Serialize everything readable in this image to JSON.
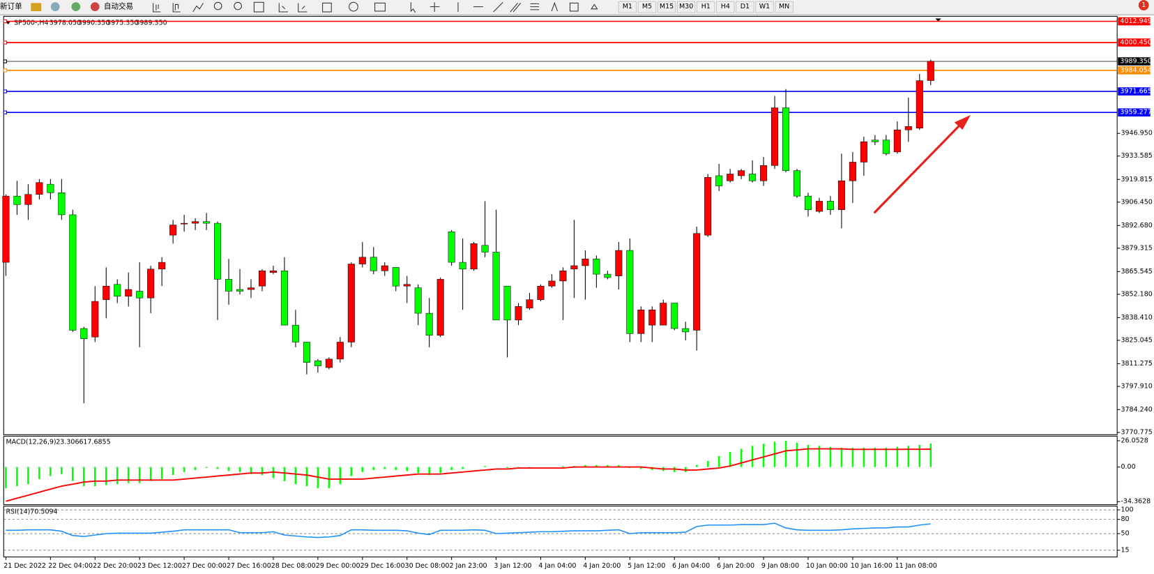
{
  "toolbar": {
    "new_order": "新订单",
    "auto_trading": "自动交易",
    "timeframes": [
      "M1",
      "M5",
      "M15",
      "M30",
      "H1",
      "H4",
      "D1",
      "W1",
      "MN"
    ],
    "notifications": "1"
  },
  "chart_data": [
    {
      "type": "candlestick",
      "symbol": "SP500-,H4",
      "header_values": [
        "3978.050",
        "3990.350",
        "3975.350",
        "3989.350"
      ],
      "categories": [
        "21 Dec 2022",
        null,
        null,
        null,
        "22 Dec 04:00",
        null,
        null,
        null,
        "22 Dec 20:00",
        null,
        null,
        null,
        "23 Dec 12:00",
        null,
        null,
        null,
        "27 Dec 00:00",
        null,
        null,
        null,
        "27 Dec 16:00",
        null,
        null,
        null,
        "28 Dec 08:00",
        null,
        null,
        null,
        "29 Dec 00:00",
        null,
        null,
        null,
        "29 Dec 16:00",
        null,
        null,
        null,
        "30 Dec 08:00",
        null,
        null,
        null,
        "2 Jan 23:00",
        null,
        null,
        null,
        "3 Jan 12:00",
        null,
        null,
        null,
        "4 Jan 04:00",
        null,
        null,
        null,
        "4 Jan 20:00",
        null,
        null,
        null,
        "5 Jan 12:00",
        null,
        null,
        null,
        "6 Jan 04:00",
        null,
        null,
        null,
        "6 Jan 20:00",
        null,
        null,
        null,
        "9 Jan 08:00",
        null,
        null,
        null,
        "10 Jan 00:00",
        null,
        null,
        null,
        "10 Jan 16:00",
        null,
        null,
        null,
        "11 Jan 08:00",
        null,
        null,
        null
      ],
      "open": [
        3871,
        3910,
        3905,
        3911,
        3917,
        3912,
        3899,
        3832,
        3827,
        3849,
        3858,
        3851,
        3854,
        3850,
        3867,
        3887,
        3894,
        3894,
        3895,
        3894,
        3861,
        3855,
        3855,
        3857,
        3865,
        3866,
        3834,
        3824,
        3813,
        3809,
        3814,
        3824,
        3870,
        3874,
        3866,
        3868,
        3857,
        3856,
        3841,
        3828,
        3889,
        3871,
        3867,
        3881,
        3877,
        3857,
        3837,
        3844,
        3849,
        3857,
        3860,
        3867,
        3869,
        3873,
        3864,
        3863,
        3878,
        3829,
        3834,
        3834,
        3847,
        3832,
        3831,
        3887,
        3922,
        3919,
        3922,
        3923,
        3919,
        3928,
        3962,
        3925,
        3910,
        3901,
        3907,
        3902,
        3919,
        3930,
        3943,
        3943,
        3936,
        3949,
        3950,
        3978.05
      ],
      "high": [
        3911,
        3919,
        3917,
        3920,
        3920,
        3920,
        3902,
        3833,
        3857,
        3868,
        3861,
        3865,
        3871,
        3869,
        3874,
        3896,
        3899,
        3897,
        3900,
        3895,
        3873,
        3867,
        3861,
        3867,
        3869,
        3874,
        3843,
        3824,
        3814,
        3815,
        3827,
        3871,
        3883,
        3880,
        3871,
        3868,
        3863,
        3858,
        3850,
        3862,
        3890,
        3885,
        3883,
        3907,
        3902,
        3857,
        3847,
        3853,
        3858,
        3864,
        3868,
        3896,
        3878,
        3875,
        3866,
        3883,
        3885,
        3845,
        3845,
        3849,
        3847,
        3836,
        3892,
        3923,
        3929,
        3926,
        3926,
        3931,
        3933,
        3969,
        3973,
        3926,
        3912,
        3909,
        3910,
        3935,
        3936,
        3945,
        3946,
        3946,
        3954,
        3968,
        3982,
        3990.35
      ],
      "low": [
        3863,
        3899,
        3896,
        3908,
        3908,
        3896,
        3830,
        3788,
        3824,
        3838,
        3847,
        3845,
        3821,
        3841,
        3857,
        3882,
        3889,
        3890,
        3890,
        3837,
        3846,
        3852,
        3850,
        3854,
        3864,
        3834,
        3821,
        3805,
        3806,
        3808,
        3812,
        3821,
        3868,
        3864,
        3863,
        3854,
        3847,
        3834,
        3821,
        3827,
        3869,
        3843,
        3866,
        3874,
        3837,
        3815,
        3834,
        3843,
        3848,
        3856,
        3837,
        3850,
        3849,
        3856,
        3861,
        3855,
        3824,
        3824,
        3824,
        3834,
        3831,
        3825,
        3819,
        3886,
        3913,
        3918,
        3920,
        3918,
        3916,
        3926,
        3924,
        3909,
        3898,
        3900,
        3899,
        3891,
        3906,
        3922,
        3940,
        3934,
        3935,
        3942,
        3949,
        3975.35
      ],
      "close": [
        3910,
        3905,
        3911,
        3918,
        3912,
        3899,
        3831,
        3826,
        3848,
        3857,
        3851,
        3855,
        3850,
        3867,
        3871,
        3893,
        3894,
        3895,
        3894,
        3861,
        3854,
        3854,
        3856,
        3866,
        3866,
        3834,
        3824,
        3812,
        3810,
        3814,
        3824,
        3870,
        3874,
        3866,
        3869,
        3857,
        3858,
        3841,
        3828,
        3861,
        3871,
        3867,
        3882,
        3877,
        3837,
        3837,
        3845,
        3849,
        3857,
        3860,
        3866,
        3869,
        3873,
        3864,
        3862,
        3878,
        3829,
        3843,
        3843,
        3847,
        3832,
        3830,
        3888,
        3921,
        3916,
        3923,
        3925,
        3919,
        3928,
        3962,
        3925,
        3910,
        3902,
        3907,
        3902,
        3919,
        3930,
        3942,
        3942,
        3935,
        3949,
        3951,
        3978,
        3989.35
      ],
      "up_color": "#ff0000",
      "down_color": "#00ff00",
      "ylim": [
        3769.47,
        4015.9
      ],
      "yticks": [
        3770.775,
        {
          "value": 3784.24,
          "label": "3784.240"
        },
        {
          "value": 3797.91,
          "label": "3797.910"
        },
        3811.275,
        3825.045,
        {
          "value": 3838.41,
          "label": "3838.410"
        },
        {
          "value": 3852.18,
          "label": "3852.180"
        },
        3865.545,
        3879.315,
        {
          "value": 3892.68,
          "label": "3892.680"
        },
        {
          "value": 3906.45,
          "label": "3906.450"
        },
        3919.815,
        3933.585,
        {
          "value": 3946.95,
          "label": "3946.950"
        }
      ],
      "levels": [
        {
          "value": 4012.949,
          "color": "#ff0000"
        },
        {
          "value": 4000.45,
          "label": "4000.450",
          "color": "#ff0000"
        },
        {
          "value": 3989.35,
          "label": "3989.350",
          "color": "#000000"
        },
        {
          "value": 3984.054,
          "color": "#ff8c00"
        },
        {
          "value": 3971.665,
          "color": "#0000ff"
        },
        {
          "value": 3959.277,
          "color": "#0000ff"
        }
      ]
    },
    {
      "type": "macd",
      "title": "MACD(12,26,9)",
      "series": [
        {
          "style": "histogram",
          "color": "#00ff00",
          "values": [
            -21,
            -19,
            -17,
            -12,
            -9,
            -7,
            -14,
            -19,
            -19,
            -18,
            -17,
            -16,
            -16,
            -14,
            -12,
            -8,
            -5,
            -3,
            -1,
            -2,
            -4,
            -5,
            -7,
            -8,
            -11,
            -14,
            -17,
            -19,
            -21,
            -21,
            -17,
            -9,
            -5,
            -3,
            -2,
            -3,
            -4,
            -6,
            -8,
            -6,
            -3,
            -2,
            0,
            1,
            0,
            -1,
            -1,
            -1,
            0,
            0,
            1,
            1,
            2,
            2,
            2,
            2,
            -1,
            -2,
            -3,
            -4,
            -5,
            -5,
            2,
            6,
            11,
            15,
            18,
            21,
            23,
            25,
            26,
            24,
            22,
            21,
            20,
            19,
            19,
            19,
            19,
            19,
            20,
            21,
            22,
            23.3066
          ]
        },
        {
          "style": "line",
          "color": "#ff0000",
          "values": [
            -34,
            -31,
            -28,
            -25,
            -22,
            -19,
            -17,
            -15,
            -14,
            -14,
            -13,
            -13,
            -13,
            -13,
            -13,
            -13,
            -12,
            -11,
            -10,
            -9,
            -8,
            -7,
            -6,
            -6,
            -5,
            -6,
            -7,
            -8,
            -10,
            -12,
            -12,
            -12,
            -12,
            -11,
            -10,
            -9,
            -8,
            -7,
            -7,
            -7,
            -6,
            -5,
            -4,
            -3,
            -2,
            -2,
            -1,
            -1,
            -1,
            -1,
            -1,
            0,
            0,
            0,
            0,
            0,
            0,
            0,
            -1,
            -2,
            -2,
            -3,
            -3,
            -2,
            -1,
            1,
            4,
            7,
            10,
            13,
            16,
            17,
            18,
            18,
            18,
            18,
            17.5,
            17.5,
            17.5,
            17.5,
            17.5,
            17.6,
            17.6,
            17.6855
          ]
        }
      ],
      "ylim": [
        -37.4,
        30.6
      ],
      "yticks": [
        26.0528,
        {
          "value": 0,
          "label": "0.00"
        },
        -34.3628
      ]
    },
    {
      "type": "rsi",
      "title": "RSI(14)",
      "series": [
        {
          "style": "line",
          "color": "#1e90ff",
          "values": [
            57,
            57,
            58,
            58,
            58,
            55,
            46,
            44,
            47,
            50,
            51,
            51,
            51,
            51,
            53,
            55,
            58,
            58,
            58,
            58,
            58,
            52,
            52,
            52,
            54,
            47,
            45,
            43,
            42,
            43,
            46,
            58,
            58,
            57,
            57,
            57,
            56,
            51,
            48,
            57,
            57,
            57,
            58,
            57,
            50,
            51,
            52,
            53,
            54,
            54,
            55,
            56,
            56,
            56,
            57,
            58,
            50,
            52,
            52,
            52,
            52,
            53,
            65,
            68,
            68,
            68,
            69,
            69,
            69,
            72,
            62,
            58,
            57,
            57,
            57,
            58,
            60,
            61,
            62,
            62,
            64,
            64,
            68,
            70.5094
          ]
        }
      ],
      "ylim": [
        0.8,
        107.9
      ],
      "yticks": [
        100,
        80,
        50,
        15
      ]
    }
  ]
}
